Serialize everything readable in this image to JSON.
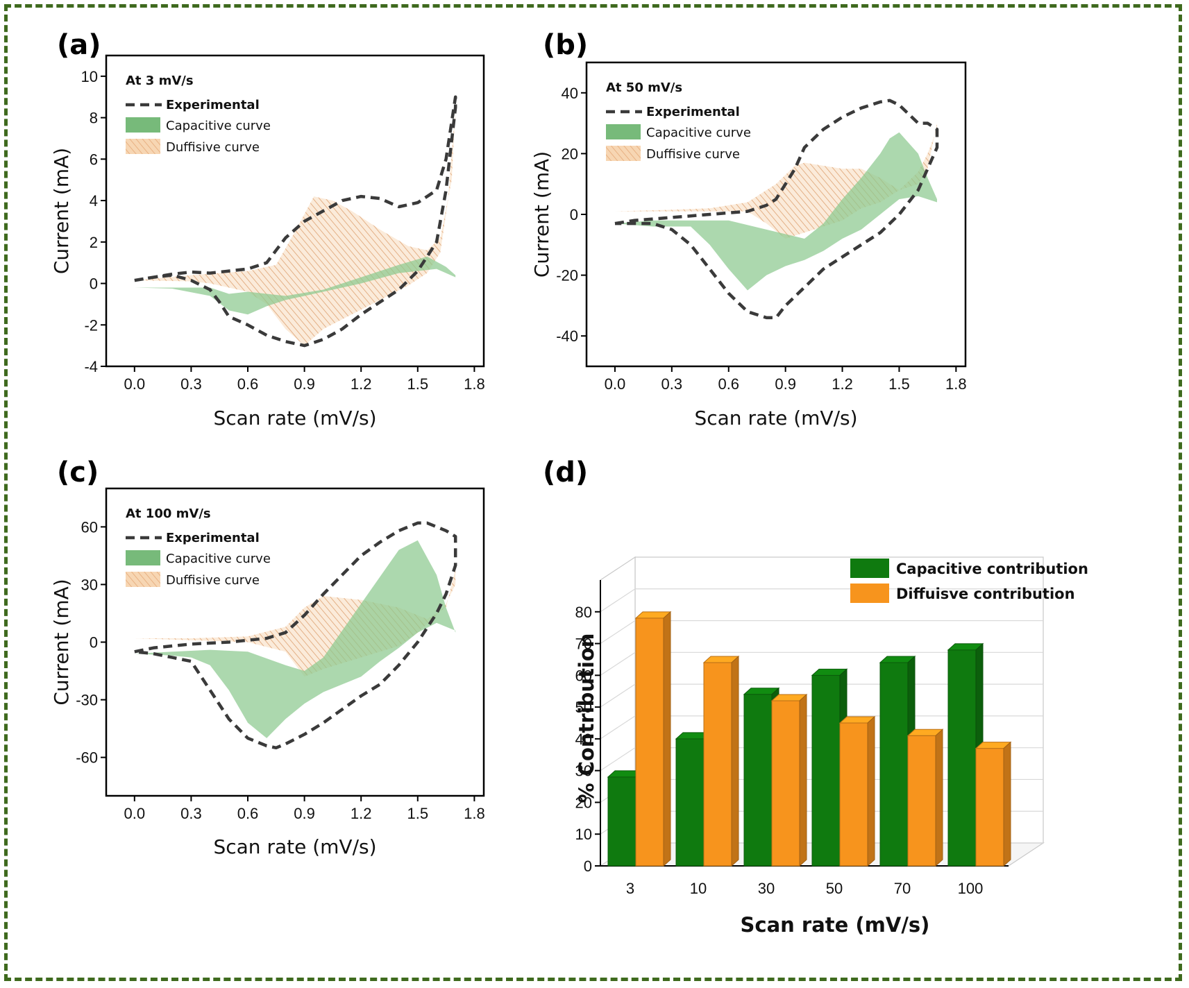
{
  "colors": {
    "frame": "#3f6a1e",
    "experimental": "#3a3a3a",
    "capacitive": "#8cc98f",
    "diffusive": "#f2c59a",
    "bar_capacitive": "#0f7a0f",
    "bar_diffusive": "#f7941d"
  },
  "chart_data": [
    {
      "panel": "(a)",
      "type": "area",
      "subtitle": "At 3 mV/s",
      "xlabel": "Scan rate (mV/s)",
      "ylabel": "Current (mA)",
      "xlim": [
        -0.15,
        1.85
      ],
      "ylim": [
        -4,
        11
      ],
      "xticks": [
        0.0,
        0.3,
        0.6,
        0.9,
        1.2,
        1.5,
        1.8
      ],
      "xtick_labels": [
        "0.0",
        "0.3",
        "0.6",
        "0.9",
        "1.2",
        "1.5",
        "1.8"
      ],
      "yticks": [
        -4,
        -2,
        0,
        2,
        4,
        6,
        8,
        10
      ],
      "ytick_labels": [
        "-4",
        "-2",
        "0",
        "2",
        "4",
        "6",
        "8",
        "10"
      ],
      "legend": [
        "Experimental",
        "Capacitive curve",
        "Duffisive curve"
      ],
      "series": [
        {
          "name": "Experimental",
          "style": "dashed",
          "x": [
            0.0,
            0.1,
            0.2,
            0.3,
            0.4,
            0.5,
            0.6,
            0.7,
            0.75,
            0.8,
            0.9,
            1.0,
            1.1,
            1.2,
            1.3,
            1.4,
            1.5,
            1.6,
            1.65,
            1.7,
            1.7,
            1.65,
            1.6,
            1.5,
            1.4,
            1.3,
            1.2,
            1.1,
            1.0,
            0.9,
            0.8,
            0.7,
            0.6,
            0.5,
            0.45,
            0.4,
            0.3,
            0.2,
            0.1,
            0.0
          ],
          "y": [
            0.15,
            0.3,
            0.45,
            0.55,
            0.5,
            0.6,
            0.7,
            1.0,
            1.6,
            2.2,
            3.0,
            3.5,
            4.0,
            4.2,
            4.1,
            3.7,
            3.9,
            4.5,
            6.0,
            9.0,
            8.5,
            4.5,
            2.0,
            0.6,
            -0.3,
            -0.9,
            -1.5,
            -2.2,
            -2.7,
            -3.0,
            -2.8,
            -2.5,
            -2.0,
            -1.6,
            -0.9,
            -0.3,
            0.15,
            0.4,
            0.3,
            0.15
          ]
        },
        {
          "name": "Capacitive curve",
          "style": "fill",
          "x": [
            0.0,
            0.2,
            0.4,
            0.5,
            0.6,
            0.8,
            1.0,
            1.2,
            1.4,
            1.55,
            1.65,
            1.7,
            1.7,
            1.6,
            1.4,
            1.2,
            1.0,
            0.9,
            0.8,
            0.7,
            0.6,
            0.5,
            0.4,
            0.2,
            0.0
          ],
          "y": [
            -0.2,
            -0.2,
            -0.2,
            -0.5,
            -0.4,
            -0.6,
            -0.3,
            0.3,
            0.9,
            1.3,
            0.8,
            0.4,
            0.3,
            0.7,
            0.5,
            0.0,
            -0.4,
            -0.6,
            -0.8,
            -1.1,
            -1.5,
            -1.3,
            -0.6,
            -0.25,
            -0.2
          ]
        },
        {
          "name": "Duffisive curve",
          "style": "hatch",
          "x": [
            0.0,
            0.3,
            0.45,
            0.6,
            0.75,
            0.85,
            0.95,
            1.05,
            1.15,
            1.3,
            1.45,
            1.55,
            1.62,
            1.68,
            1.7,
            1.66,
            1.62,
            1.55,
            1.45,
            1.3,
            1.15,
            1.0,
            0.9,
            0.8,
            0.7,
            0.6,
            0.5,
            0.4,
            0.3,
            0.0
          ],
          "y": [
            0.15,
            0.4,
            0.5,
            0.6,
            0.9,
            2.5,
            4.2,
            4.0,
            3.5,
            2.6,
            1.8,
            1.6,
            2.2,
            5.0,
            8.5,
            4.0,
            1.5,
            0.5,
            -0.1,
            -0.8,
            -1.5,
            -2.2,
            -3.0,
            -2.2,
            -1.0,
            -0.4,
            -0.2,
            0.0,
            0.1,
            0.15
          ]
        }
      ]
    },
    {
      "panel": "(b)",
      "type": "area",
      "subtitle": "At 50 mV/s",
      "xlabel": "Scan rate (mV/s)",
      "ylabel": "Current (mA)",
      "xlim": [
        -0.15,
        1.85
      ],
      "ylim": [
        -50,
        50
      ],
      "xticks": [
        0.0,
        0.3,
        0.6,
        0.9,
        1.2,
        1.5,
        1.8
      ],
      "xtick_labels": [
        "0.0",
        "0.3",
        "0.6",
        "0.9",
        "1.2",
        "1.5",
        "1.8"
      ],
      "yticks": [
        -40,
        -20,
        0,
        20,
        40
      ],
      "ytick_labels": [
        "-40",
        "-20",
        "0",
        "20",
        "40"
      ],
      "legend": [
        "Experimental",
        "Capacitive curve",
        "Duffisive curve"
      ],
      "series": [
        {
          "name": "Experimental",
          "style": "dashed",
          "x": [
            0.0,
            0.1,
            0.2,
            0.3,
            0.4,
            0.5,
            0.6,
            0.7,
            0.8,
            0.85,
            0.9,
            0.95,
            1.0,
            1.1,
            1.2,
            1.3,
            1.4,
            1.45,
            1.5,
            1.6,
            1.65,
            1.7,
            1.7,
            1.65,
            1.6,
            1.5,
            1.4,
            1.3,
            1.2,
            1.1,
            1.0,
            0.9,
            0.85,
            0.8,
            0.7,
            0.6,
            0.5,
            0.4,
            0.3,
            0.2,
            0.1,
            0.0
          ],
          "y": [
            -3,
            -2,
            -1.5,
            -1,
            -0.5,
            0,
            0.5,
            1,
            3,
            5,
            10,
            15,
            22,
            28,
            32,
            35,
            37,
            37.5,
            36,
            30,
            30,
            28,
            22,
            15,
            8,
            0,
            -6,
            -10,
            -14,
            -18,
            -24,
            -30,
            -34,
            -34,
            -32,
            -26,
            -18,
            -10,
            -5,
            -3,
            -3,
            -3
          ]
        },
        {
          "name": "Capacitive curve",
          "style": "fill",
          "x": [
            0.0,
            0.2,
            0.4,
            0.6,
            0.8,
            1.0,
            1.1,
            1.2,
            1.3,
            1.4,
            1.45,
            1.5,
            1.6,
            1.65,
            1.7,
            1.7,
            1.6,
            1.5,
            1.4,
            1.3,
            1.2,
            1.1,
            1.0,
            0.9,
            0.8,
            0.7,
            0.6,
            0.5,
            0.4,
            0.3,
            0.2,
            0.0
          ],
          "y": [
            -3,
            -2,
            -2,
            -2,
            -5,
            -8,
            -3,
            5,
            12,
            20,
            25,
            27,
            20,
            12,
            5,
            4,
            6,
            5,
            0,
            -5,
            -8,
            -12,
            -15,
            -17,
            -20,
            -25,
            -18,
            -10,
            -4,
            -4,
            -4,
            -3
          ]
        },
        {
          "name": "Duffisive curve",
          "style": "hatch",
          "x": [
            0.0,
            0.3,
            0.5,
            0.7,
            0.85,
            0.95,
            1.0,
            1.1,
            1.2,
            1.3,
            1.4,
            1.5,
            1.6,
            1.65,
            1.7,
            1.7,
            1.65,
            1.6,
            1.5,
            1.4,
            1.3,
            1.2,
            1.0,
            0.9,
            0.8,
            0.7,
            0.6,
            0.5,
            0.3,
            0.0
          ],
          "y": [
            1,
            1.5,
            2,
            4,
            10,
            16,
            17,
            16,
            15,
            15,
            12,
            8,
            10,
            15,
            30,
            28,
            20,
            14,
            8,
            4,
            2,
            -2,
            -6,
            -8,
            -3,
            1,
            1,
            1,
            1,
            1
          ]
        }
      ]
    },
    {
      "panel": "(c)",
      "type": "area",
      "subtitle": "At 100 mV/s",
      "xlabel": "Scan rate (mV/s)",
      "ylabel": "Current (mA)",
      "xlim": [
        -0.15,
        1.85
      ],
      "ylim": [
        -80,
        80
      ],
      "xticks": [
        0.0,
        0.3,
        0.6,
        0.9,
        1.2,
        1.5,
        1.8
      ],
      "xtick_labels": [
        "0.0",
        "0.3",
        "0.6",
        "0.9",
        "1.2",
        "1.5",
        "1.8"
      ],
      "yticks": [
        -60,
        -30,
        0,
        30,
        60
      ],
      "ytick_labels": [
        "-60",
        "-30",
        "0",
        "30",
        "60"
      ],
      "legend": [
        "Experimental",
        "Capacitive curve",
        "Duffisive curve"
      ],
      "series": [
        {
          "name": "Experimental",
          "style": "dashed",
          "x": [
            0.0,
            0.1,
            0.2,
            0.3,
            0.5,
            0.7,
            0.8,
            0.9,
            1.0,
            1.1,
            1.2,
            1.3,
            1.4,
            1.5,
            1.55,
            1.65,
            1.7,
            1.7,
            1.65,
            1.6,
            1.5,
            1.4,
            1.3,
            1.2,
            1.1,
            1.0,
            0.9,
            0.8,
            0.75,
            0.7,
            0.6,
            0.5,
            0.4,
            0.3,
            0.2,
            0.1,
            0.0
          ],
          "y": [
            -5,
            -3,
            -2,
            -1,
            0,
            2,
            5,
            14,
            25,
            35,
            45,
            52,
            58,
            62,
            62,
            58,
            55,
            40,
            25,
            15,
            0,
            -12,
            -22,
            -28,
            -35,
            -42,
            -48,
            -53,
            -55,
            -54,
            -50,
            -40,
            -25,
            -10,
            -8,
            -6,
            -5
          ]
        },
        {
          "name": "Capacitive curve",
          "style": "fill",
          "x": [
            0.0,
            0.2,
            0.4,
            0.6,
            0.8,
            0.9,
            1.0,
            1.2,
            1.4,
            1.5,
            1.6,
            1.65,
            1.7,
            1.7,
            1.6,
            1.5,
            1.4,
            1.3,
            1.2,
            1.1,
            1.0,
            0.9,
            0.8,
            0.7,
            0.6,
            0.5,
            0.4,
            0.3,
            0.2,
            0.0
          ],
          "y": [
            -6,
            -5,
            -4,
            -5,
            -12,
            -15,
            -8,
            20,
            48,
            53,
            35,
            18,
            5,
            6,
            10,
            5,
            -3,
            -10,
            -18,
            -22,
            -26,
            -32,
            -40,
            -50,
            -42,
            -25,
            -12,
            -8,
            -7,
            -6
          ]
        },
        {
          "name": "Duffisive curve",
          "style": "hatch",
          "x": [
            0.0,
            0.3,
            0.6,
            0.8,
            0.9,
            1.0,
            1.2,
            1.4,
            1.55,
            1.65,
            1.7,
            1.7,
            1.65,
            1.6,
            1.5,
            1.4,
            1.2,
            1.0,
            0.9,
            0.8,
            0.6,
            0.3,
            0.0
          ],
          "y": [
            2,
            2,
            3,
            8,
            18,
            24,
            22,
            18,
            12,
            18,
            38,
            30,
            20,
            14,
            5,
            -2,
            -8,
            -14,
            -18,
            -5,
            0,
            1,
            2
          ]
        }
      ]
    },
    {
      "panel": "(d)",
      "type": "bar",
      "xlabel": "Scan rate (mV/s)",
      "ylabel": "% Contribution",
      "ylim": [
        0,
        90
      ],
      "yticks": [
        0,
        10,
        20,
        30,
        40,
        50,
        60,
        70,
        80
      ],
      "ytick_labels": [
        "0",
        "10",
        "20",
        "30",
        "40",
        "50",
        "60",
        "70",
        "80"
      ],
      "categories": [
        "3",
        "10",
        "30",
        "50",
        "70",
        "100"
      ],
      "legend_placement": "top-right",
      "series": [
        {
          "name": "Capacitive contribution",
          "values": [
            28,
            40,
            54,
            60,
            64,
            68
          ]
        },
        {
          "name": "Diffuisve contribution",
          "values": [
            78,
            64,
            52,
            45,
            41,
            37
          ]
        }
      ]
    }
  ]
}
